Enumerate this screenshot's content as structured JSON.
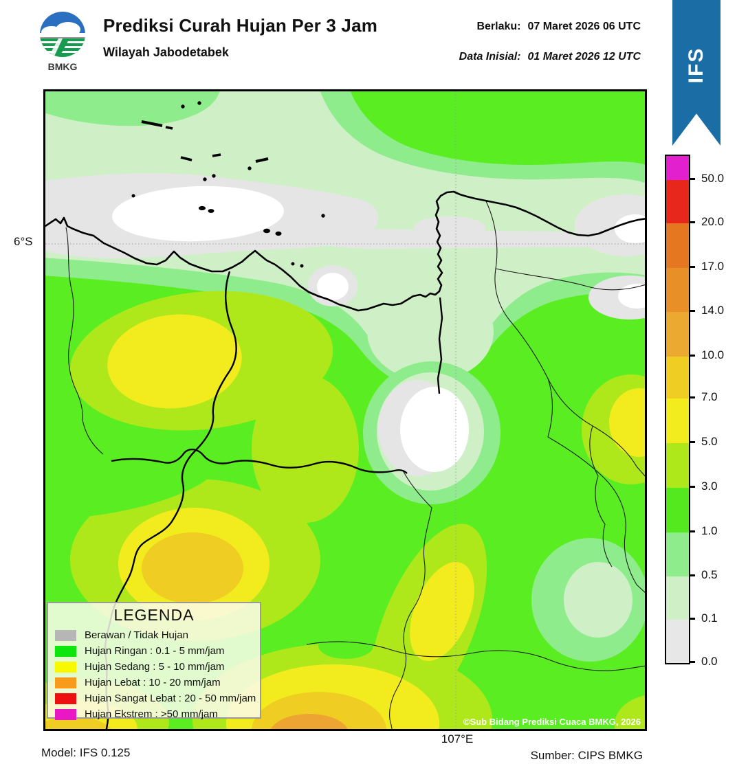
{
  "header": {
    "logo_text": "BMKG",
    "title": "Prediksi Curah Hujan Per 3 Jam",
    "subtitle": "Wilayah Jabodetabek",
    "valid_label": "Berlaku:",
    "valid_value": "07 Maret 2026 06 UTC",
    "init_label": "Data Inisial:",
    "init_value": "01 Maret 2026 12 UTC",
    "ribbon_text": "IFS"
  },
  "map": {
    "lat_label": "6°S",
    "lon_label": "107°E",
    "copyright": "©Sub Bidang Prediksi Cuaca BMKG, 2026"
  },
  "legend": {
    "title": "LEGENDA",
    "items": [
      {
        "label": "Berawan / Tidak Hujan",
        "color": "#b6b6b6"
      },
      {
        "label": "Hujan Ringan : 0.1 - 5 mm/jam",
        "color": "#0ce60c"
      },
      {
        "label": "Hujan Sedang : 5 - 10 mm/jam",
        "color": "#f8f800"
      },
      {
        "label": "Hujan Lebat : 10 - 20 mm/jam",
        "color": "#f89a1c"
      },
      {
        "label": "Hujan Sangat Lebat : 20 - 50 mm/jam",
        "color": "#ee1010"
      },
      {
        "label": "Hujan Ekstrem : >50 mm/jam",
        "color": "#ea18c4"
      }
    ]
  },
  "colorbar": {
    "tick_labels": [
      "50.0",
      "20.0",
      "17.0",
      "14.0",
      "10.0",
      "7.0",
      "5.0",
      "3.0",
      "1.0",
      "0.5",
      "0.1",
      "0.0"
    ],
    "segment_colors_top_to_bottom": [
      "#e220ce",
      "#e8271c",
      "#e4771f",
      "#e98f27",
      "#eba932",
      "#efcd22",
      "#f2ec1e",
      "#aee81a",
      "#54e81e",
      "#8fec8c",
      "#cff0c6",
      "#e7e7e7"
    ]
  },
  "palette": {
    "pale_green": "#cff0c6",
    "medium_green": "#8fec8c",
    "bright_green": "#5aee22",
    "yellow_green": "#aee81a",
    "yellow": "#f2ec1e",
    "yellow_orange": "#efcd22",
    "orange": "#eda432",
    "gray_cloud": "#e5e5e5",
    "white_zero": "#ffffff",
    "ribbon_blue": "#1b6da6",
    "logo_blue": "#2a6fc0",
    "logo_green": "#169b4f"
  },
  "footer": {
    "model": "Model: IFS 0.125",
    "source": "Sumber: CIPS BMKG"
  }
}
